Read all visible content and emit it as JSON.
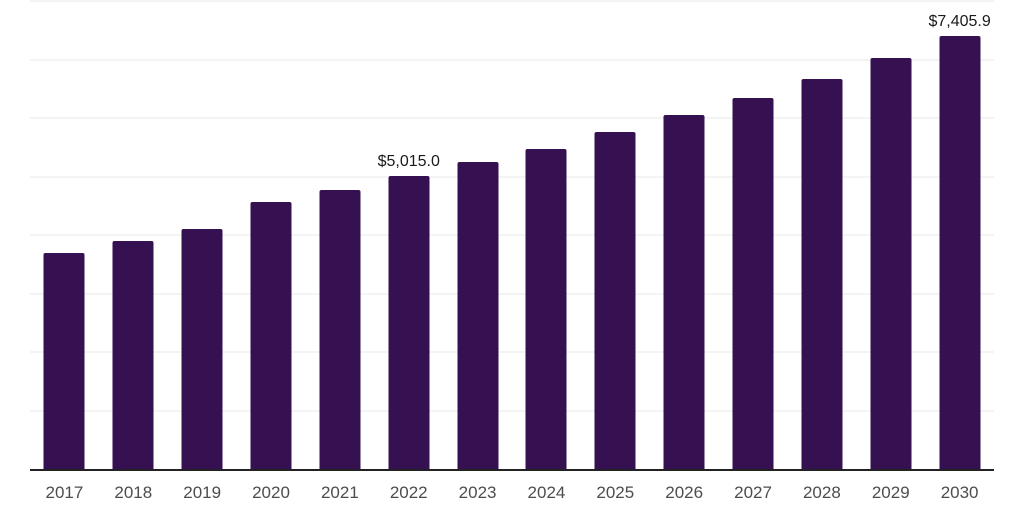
{
  "chart_data": {
    "type": "bar",
    "title": "",
    "xlabel": "",
    "ylabel": "",
    "categories": [
      "2017",
      "2018",
      "2019",
      "2020",
      "2021",
      "2022",
      "2023",
      "2024",
      "2025",
      "2026",
      "2027",
      "2028",
      "2029",
      "2030"
    ],
    "values": [
      3700,
      3895,
      4105,
      4570,
      4765,
      5015.0,
      5240,
      5475,
      5755,
      6050,
      6335,
      6670,
      7020,
      7405.9
    ],
    "value_labels": [
      "",
      "",
      "",
      "",
      "",
      "$5,015.0",
      "",
      "",
      "",
      "",
      "",
      "",
      "",
      "$7,405.9"
    ],
    "ylim": [
      0,
      8000
    ],
    "grid_step": 1000,
    "grid": "horizontal",
    "y_tick_labels_visible": false,
    "legend_position": "none"
  },
  "colors": {
    "background": "#ffffff",
    "bar": "#361151",
    "gridline": "#f4f4f4",
    "axis_line": "#222222",
    "x_tick_label": "#4d4d4d",
    "value_label": "#1a1a1a"
  }
}
